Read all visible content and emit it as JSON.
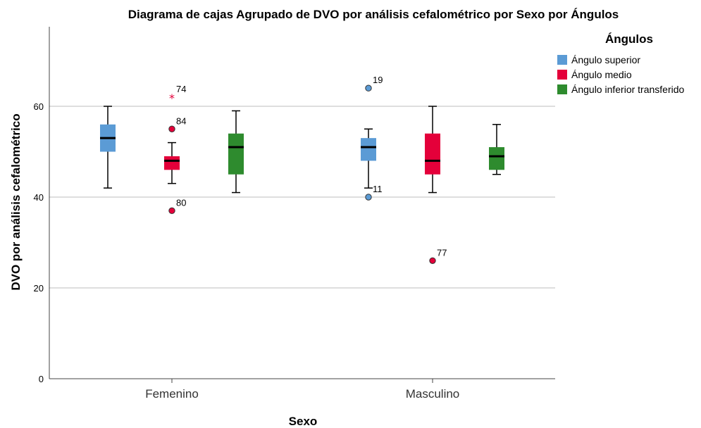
{
  "chart_data": {
    "type": "boxplot",
    "title": "Diagrama de cajas Agrupado de DVO por análisis cefalométrico por Sexo por Ángulos",
    "xlabel": "Sexo",
    "ylabel": "DVO por análisis cefalométrico",
    "ylim": [
      0,
      78
    ],
    "yticks": [
      0,
      20,
      40,
      60
    ],
    "grid": "horizontal",
    "categories": [
      "Femenino",
      "Masculino"
    ],
    "legend": {
      "title": "Ángulos",
      "position": "top-right"
    },
    "series": [
      {
        "name": "Ángulo superior",
        "color": "#5b9bd5",
        "boxes": [
          {
            "min": 42,
            "q1": 50,
            "median": 53,
            "q3": 56,
            "max": 60,
            "outliers": []
          },
          {
            "min": 42,
            "q1": 48,
            "median": 51,
            "q3": 53,
            "max": 55,
            "outliers": [
              {
                "value": 64,
                "label": "19",
                "marker": "circle"
              },
              {
                "value": 40,
                "label": "11",
                "marker": "circle"
              }
            ]
          }
        ]
      },
      {
        "name": "Ángulo medio",
        "color": "#e4003a",
        "boxes": [
          {
            "min": 43,
            "q1": 46,
            "median": 48,
            "q3": 49,
            "max": 52,
            "outliers": [
              {
                "value": 62,
                "label": "74",
                "marker": "star"
              },
              {
                "value": 55,
                "label": "84",
                "marker": "circle"
              },
              {
                "value": 37,
                "label": "80",
                "marker": "circle"
              }
            ]
          },
          {
            "min": 41,
            "q1": 45,
            "median": 48,
            "q3": 54,
            "max": 60,
            "outliers": [
              {
                "value": 26,
                "label": "77",
                "marker": "circle"
              }
            ]
          }
        ]
      },
      {
        "name": "Ángulo inferior transferido",
        "color": "#2e8b2e",
        "boxes": [
          {
            "min": 41,
            "q1": 45,
            "median": 51,
            "q3": 54,
            "max": 59,
            "outliers": []
          },
          {
            "min": 45,
            "q1": 46,
            "median": 49,
            "q3": 51,
            "max": 56,
            "outliers": []
          }
        ]
      }
    ]
  }
}
